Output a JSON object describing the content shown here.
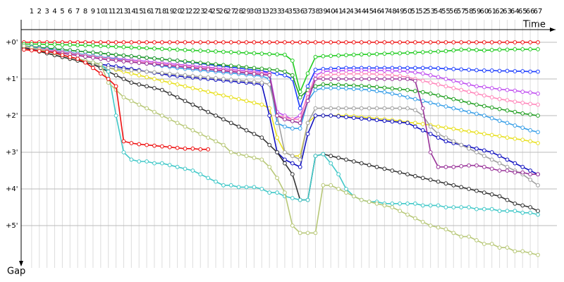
{
  "chart_data": {
    "type": "line",
    "x_label": "Time",
    "y_label": "Gap",
    "x": [
      0,
      1,
      2,
      3,
      4,
      5,
      6,
      7,
      8,
      9,
      10,
      11,
      12,
      13,
      14,
      15,
      16,
      17,
      18,
      19,
      20,
      21,
      22,
      23,
      24,
      25,
      26,
      27,
      28,
      29,
      30,
      31,
      32,
      33,
      34,
      35,
      36,
      37,
      38,
      39,
      40,
      41,
      42,
      43,
      44,
      45,
      46,
      47,
      48,
      49,
      50,
      51,
      52,
      53,
      54,
      55,
      56,
      57,
      58,
      59,
      60,
      61,
      62,
      63,
      64,
      65,
      66,
      67
    ],
    "xlim": [
      0,
      67
    ],
    "xticks": [
      1,
      2,
      3,
      4,
      5,
      6,
      7,
      8,
      9,
      10,
      11,
      12,
      13,
      14,
      15,
      16,
      17,
      18,
      19,
      20,
      21,
      22,
      23,
      24,
      25,
      26,
      27,
      28,
      29,
      30,
      31,
      32,
      33,
      34,
      35,
      36,
      37,
      38,
      39,
      40,
      41,
      42,
      43,
      44,
      45,
      46,
      47,
      48,
      49,
      50,
      51,
      52,
      53,
      54,
      55,
      56,
      57,
      58,
      59,
      60,
      61,
      62,
      63,
      64,
      65,
      66,
      67
    ],
    "ylim": [
      0,
      6
    ],
    "yticks": [
      {
        "value": 0,
        "label": "+0'"
      },
      {
        "value": 1,
        "label": "+1'"
      },
      {
        "value": 2,
        "label": "+2'"
      },
      {
        "value": 3,
        "label": "+3'"
      },
      {
        "value": 4,
        "label": "+4'"
      },
      {
        "value": 5,
        "label": "+5'"
      }
    ],
    "y_inverted": true,
    "grid": true,
    "series": [
      {
        "color": "#ee1111",
        "values": [
          0,
          0,
          0,
          0,
          0,
          0,
          0,
          0,
          0,
          0,
          0,
          0,
          0,
          0,
          0,
          0,
          0,
          0,
          0,
          0,
          0,
          0,
          0,
          0,
          0,
          0,
          0,
          0,
          0,
          0,
          0,
          0,
          0,
          0,
          0,
          0,
          0,
          0,
          0,
          0,
          0,
          0,
          0,
          0,
          0,
          0,
          0,
          0,
          0,
          0,
          0,
          0,
          0,
          0,
          0,
          0,
          0,
          0,
          0,
          0,
          0,
          0,
          0,
          0,
          0,
          0,
          0,
          0
        ]
      },
      {
        "color": "#22cc22",
        "values": [
          0.05,
          0.05,
          0.05,
          0.06,
          0.06,
          0.07,
          0.07,
          0.08,
          0.08,
          0.09,
          0.1,
          0.11,
          0.12,
          0.13,
          0.14,
          0.15,
          0.16,
          0.17,
          0.18,
          0.19,
          0.2,
          0.21,
          0.22,
          0.23,
          0.24,
          0.25,
          0.26,
          0.27,
          0.28,
          0.29,
          0.3,
          0.31,
          0.32,
          0.33,
          0.34,
          0.5,
          1.35,
          0.85,
          0.4,
          0.38,
          0.37,
          0.36,
          0.35,
          0.34,
          0.33,
          0.33,
          0.32,
          0.31,
          0.3,
          0.3,
          0.29,
          0.28,
          0.27,
          0.26,
          0.25,
          0.24,
          0.22,
          0.2,
          0.2,
          0.21,
          0.22,
          0.21,
          0.2,
          0.2,
          0.19,
          0.19,
          0.19,
          0.19
        ]
      },
      {
        "color": "#1a3cff",
        "values": [
          0.1,
          0.12,
          0.14,
          0.16,
          0.18,
          0.2,
          0.22,
          0.24,
          0.26,
          0.28,
          0.3,
          0.32,
          0.34,
          0.36,
          0.38,
          0.4,
          0.42,
          0.44,
          0.46,
          0.48,
          0.5,
          0.53,
          0.55,
          0.58,
          0.6,
          0.63,
          0.65,
          0.68,
          0.7,
          0.73,
          0.75,
          0.78,
          0.82,
          0.86,
          0.9,
          1.0,
          1.8,
          1.2,
          0.75,
          0.73,
          0.72,
          0.71,
          0.7,
          0.7,
          0.7,
          0.7,
          0.7,
          0.7,
          0.7,
          0.7,
          0.7,
          0.7,
          0.7,
          0.7,
          0.71,
          0.72,
          0.73,
          0.74,
          0.75,
          0.76,
          0.77,
          0.77,
          0.78,
          0.78,
          0.79,
          0.79,
          0.8,
          0.8
        ]
      },
      {
        "color": "#c050f0",
        "values": [
          0.1,
          0.13,
          0.16,
          0.19,
          0.22,
          0.25,
          0.28,
          0.31,
          0.34,
          0.37,
          0.4,
          0.42,
          0.44,
          0.46,
          0.48,
          0.5,
          0.52,
          0.54,
          0.56,
          0.58,
          0.6,
          0.62,
          0.64,
          0.66,
          0.68,
          0.7,
          0.72,
          0.74,
          0.76,
          0.78,
          0.8,
          0.82,
          0.84,
          1.9,
          2.0,
          2.1,
          2.0,
          1.5,
          0.9,
          0.8,
          0.78,
          0.78,
          0.77,
          0.77,
          0.77,
          0.77,
          0.77,
          0.77,
          0.78,
          0.78,
          0.8,
          0.82,
          0.85,
          0.9,
          0.95,
          1.0,
          1.05,
          1.1,
          1.15,
          1.2,
          1.22,
          1.25,
          1.28,
          1.3,
          1.32,
          1.35,
          1.37,
          1.4
        ]
      },
      {
        "color": "#22a022",
        "values": [
          0.1,
          0.12,
          0.14,
          0.16,
          0.18,
          0.2,
          0.22,
          0.24,
          0.26,
          0.28,
          0.3,
          0.32,
          0.34,
          0.36,
          0.38,
          0.4,
          0.42,
          0.44,
          0.46,
          0.48,
          0.5,
          0.52,
          0.54,
          0.56,
          0.58,
          0.6,
          0.62,
          0.64,
          0.66,
          0.68,
          0.7,
          0.72,
          0.74,
          0.76,
          0.8,
          0.9,
          1.5,
          1.3,
          1.2,
          1.15,
          1.15,
          1.16,
          1.17,
          1.18,
          1.19,
          1.2,
          1.22,
          1.24,
          1.26,
          1.28,
          1.3,
          1.33,
          1.36,
          1.4,
          1.45,
          1.5,
          1.55,
          1.6,
          1.65,
          1.7,
          1.74,
          1.78,
          1.82,
          1.86,
          1.9,
          1.94,
          1.97,
          2.0
        ]
      },
      {
        "color": "#3aa0e8",
        "values": [
          0.1,
          0.13,
          0.16,
          0.19,
          0.22,
          0.25,
          0.28,
          0.31,
          0.34,
          0.37,
          0.4,
          0.43,
          0.46,
          0.49,
          0.52,
          0.55,
          0.58,
          0.61,
          0.64,
          0.67,
          0.7,
          0.72,
          0.74,
          0.76,
          0.78,
          0.8,
          0.82,
          0.84,
          0.86,
          0.88,
          0.9,
          0.92,
          1.0,
          2.2,
          2.3,
          2.35,
          2.35,
          1.6,
          1.3,
          1.25,
          1.25,
          1.25,
          1.26,
          1.27,
          1.28,
          1.3,
          1.33,
          1.36,
          1.4,
          1.44,
          1.5,
          1.55,
          1.6,
          1.65,
          1.7,
          1.75,
          1.8,
          1.85,
          1.9,
          1.95,
          2.0,
          2.07,
          2.14,
          2.2,
          2.27,
          2.33,
          2.4,
          2.45
        ]
      },
      {
        "color": "#ff88bb",
        "values": [
          0.12,
          0.15,
          0.18,
          0.21,
          0.24,
          0.27,
          0.3,
          0.33,
          0.36,
          0.39,
          0.42,
          0.45,
          0.48,
          0.5,
          0.52,
          0.54,
          0.56,
          0.58,
          0.6,
          0.62,
          0.64,
          0.66,
          0.68,
          0.7,
          0.72,
          0.74,
          0.76,
          0.78,
          0.8,
          0.82,
          0.84,
          0.86,
          0.88,
          2.0,
          2.05,
          2.1,
          2.1,
          1.4,
          1.0,
          0.9,
          0.88,
          0.87,
          0.86,
          0.86,
          0.86,
          0.86,
          0.87,
          0.88,
          0.9,
          0.92,
          0.95,
          1.0,
          1.05,
          1.1,
          1.15,
          1.2,
          1.25,
          1.3,
          1.35,
          1.4,
          1.45,
          1.5,
          1.55,
          1.58,
          1.62,
          1.65,
          1.68,
          1.7
        ]
      },
      {
        "color": "#e8e020",
        "values": [
          0.15,
          0.2,
          0.25,
          0.3,
          0.35,
          0.4,
          0.45,
          0.5,
          0.55,
          0.6,
          0.65,
          0.7,
          0.75,
          0.8,
          0.85,
          0.9,
          0.95,
          1.0,
          1.05,
          1.1,
          1.15,
          1.2,
          1.25,
          1.3,
          1.35,
          1.4,
          1.45,
          1.5,
          1.55,
          1.6,
          1.65,
          1.7,
          1.8,
          2.6,
          3.0,
          3.1,
          3.1,
          2.2,
          2.0,
          2.0,
          2.0,
          2.0,
          2.0,
          2.02,
          2.04,
          2.06,
          2.08,
          2.1,
          2.12,
          2.15,
          2.18,
          2.2,
          2.23,
          2.26,
          2.3,
          2.33,
          2.36,
          2.4,
          2.43,
          2.46,
          2.5,
          2.53,
          2.56,
          2.6,
          2.63,
          2.66,
          2.7,
          2.75
        ]
      },
      {
        "color": "#1010c0",
        "values": [
          0.1,
          0.15,
          0.2,
          0.25,
          0.3,
          0.35,
          0.4,
          0.45,
          0.5,
          0.55,
          0.6,
          0.63,
          0.66,
          0.7,
          0.73,
          0.76,
          0.8,
          0.83,
          0.86,
          0.9,
          0.92,
          0.94,
          0.96,
          0.98,
          1.0,
          1.02,
          1.04,
          1.06,
          1.08,
          1.1,
          1.12,
          1.15,
          2.0,
          3.0,
          3.2,
          3.3,
          3.4,
          2.5,
          2.0,
          2.0,
          2.0,
          2.02,
          2.04,
          2.06,
          2.08,
          2.1,
          2.12,
          2.14,
          2.16,
          2.18,
          2.2,
          2.3,
          2.4,
          2.5,
          2.6,
          2.7,
          2.75,
          2.8,
          2.85,
          2.9,
          2.95,
          3.0,
          3.1,
          3.2,
          3.3,
          3.4,
          3.5,
          3.6
        ]
      },
      {
        "color": "#a0a0a0",
        "values": [
          0.15,
          0.2,
          0.25,
          0.3,
          0.35,
          0.4,
          0.45,
          0.5,
          0.55,
          0.6,
          0.65,
          0.7,
          0.72,
          0.74,
          0.76,
          0.78,
          0.8,
          0.82,
          0.84,
          0.86,
          0.88,
          0.9,
          0.92,
          0.94,
          0.96,
          0.98,
          1.0,
          1.02,
          1.04,
          1.06,
          1.08,
          1.1,
          1.15,
          2.0,
          3.0,
          3.1,
          3.2,
          2.2,
          1.8,
          1.8,
          1.8,
          1.8,
          1.8,
          1.8,
          1.8,
          1.8,
          1.8,
          1.8,
          1.8,
          1.8,
          1.8,
          1.85,
          2.0,
          2.3,
          2.5,
          2.6,
          2.7,
          2.8,
          2.9,
          3.0,
          3.1,
          3.2,
          3.3,
          3.4,
          3.5,
          3.6,
          3.75,
          3.9
        ]
      },
      {
        "color": "#993399",
        "values": [
          0.15,
          0.18,
          0.21,
          0.24,
          0.27,
          0.3,
          0.33,
          0.36,
          0.39,
          0.42,
          0.45,
          0.48,
          0.5,
          0.52,
          0.54,
          0.56,
          0.58,
          0.6,
          0.62,
          0.64,
          0.66,
          0.68,
          0.7,
          0.72,
          0.74,
          0.76,
          0.78,
          0.8,
          0.82,
          0.84,
          0.86,
          0.88,
          0.9,
          2.0,
          2.1,
          2.15,
          2.2,
          1.6,
          1.0,
          1.0,
          1.0,
          1.0,
          1.0,
          1.0,
          1.0,
          1.0,
          1.0,
          1.0,
          1.0,
          1.0,
          1.0,
          1.05,
          1.8,
          3.0,
          3.4,
          3.4,
          3.4,
          3.38,
          3.36,
          3.36,
          3.4,
          3.45,
          3.5,
          3.5,
          3.55,
          3.55,
          3.6,
          3.6
        ]
      },
      {
        "color": "#333333",
        "values": [
          0.15,
          0.2,
          0.25,
          0.3,
          0.35,
          0.4,
          0.45,
          0.5,
          0.55,
          0.6,
          0.7,
          0.8,
          0.9,
          1.0,
          1.1,
          1.15,
          1.2,
          1.25,
          1.3,
          1.4,
          1.5,
          1.6,
          1.7,
          1.8,
          1.9,
          2.0,
          2.1,
          2.2,
          2.3,
          2.4,
          2.5,
          2.6,
          2.8,
          3.0,
          3.3,
          3.6,
          4.3,
          4.3,
          3.1,
          3.05,
          3.1,
          3.15,
          3.2,
          3.25,
          3.3,
          3.35,
          3.4,
          3.45,
          3.5,
          3.55,
          3.6,
          3.65,
          3.7,
          3.75,
          3.8,
          3.85,
          3.9,
          3.95,
          4.0,
          4.05,
          4.1,
          4.15,
          4.2,
          4.3,
          4.4,
          4.45,
          4.5,
          4.6
        ]
      },
      {
        "color": "#40c8c8",
        "values": [
          0.1,
          0.15,
          0.2,
          0.25,
          0.3,
          0.35,
          0.4,
          0.45,
          0.5,
          0.55,
          0.6,
          0.8,
          2.0,
          3.0,
          3.2,
          3.25,
          3.25,
          3.3,
          3.3,
          3.35,
          3.4,
          3.45,
          3.5,
          3.6,
          3.7,
          3.8,
          3.9,
          3.9,
          3.95,
          3.95,
          3.95,
          4.0,
          4.1,
          4.1,
          4.2,
          4.25,
          4.3,
          4.3,
          3.1,
          3.05,
          3.3,
          3.6,
          4.0,
          4.2,
          4.3,
          4.35,
          4.35,
          4.4,
          4.4,
          4.4,
          4.4,
          4.4,
          4.45,
          4.45,
          4.45,
          4.5,
          4.5,
          4.5,
          4.5,
          4.55,
          4.55,
          4.55,
          4.6,
          4.6,
          4.6,
          4.65,
          4.65,
          4.7
        ]
      },
      {
        "color": "#b8c878",
        "values": [
          0.1,
          0.15,
          0.2,
          0.25,
          0.3,
          0.35,
          0.4,
          0.45,
          0.5,
          0.55,
          0.6,
          1.1,
          1.3,
          1.5,
          1.6,
          1.7,
          1.8,
          1.9,
          2.0,
          2.1,
          2.2,
          2.3,
          2.4,
          2.5,
          2.6,
          2.7,
          2.8,
          3.0,
          3.05,
          3.1,
          3.15,
          3.2,
          3.4,
          3.7,
          4.1,
          5.0,
          5.2,
          5.2,
          5.2,
          3.9,
          3.9,
          4.0,
          4.1,
          4.2,
          4.3,
          4.35,
          4.4,
          4.45,
          4.5,
          4.6,
          4.7,
          4.8,
          4.9,
          5.0,
          5.05,
          5.1,
          5.2,
          5.3,
          5.3,
          5.4,
          5.5,
          5.5,
          5.6,
          5.6,
          5.7,
          5.7,
          5.75,
          5.8
        ]
      },
      {
        "color": "#ee1111",
        "values": [
          0.2,
          0.22,
          0.24,
          0.26,
          0.28,
          0.35,
          0.4,
          0.45,
          0.55,
          0.7,
          0.85,
          1.0,
          1.2,
          2.7,
          2.75,
          2.78,
          2.8,
          2.82,
          2.84,
          2.86,
          2.88,
          2.9,
          2.9,
          2.92,
          2.92,
          null,
          null,
          null,
          null,
          null,
          null,
          null,
          null,
          null,
          null,
          null,
          null,
          null,
          null,
          null,
          null,
          null,
          null,
          null,
          null,
          null,
          null,
          null,
          null,
          null,
          null,
          null,
          null,
          null,
          null,
          null,
          null,
          null,
          null,
          null,
          null,
          null,
          null,
          null,
          null,
          null,
          null,
          null
        ]
      }
    ]
  }
}
